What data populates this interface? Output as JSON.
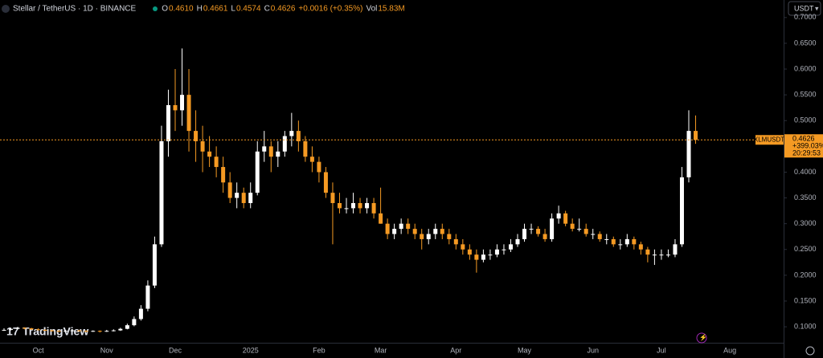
{
  "header": {
    "symbol": "Stellar / TetherUS · 1D · BINANCE",
    "ohlc": [
      {
        "label": "O",
        "value": "0.4610"
      },
      {
        "label": "H",
        "value": "0.4661"
      },
      {
        "label": "L",
        "value": "0.4574"
      },
      {
        "label": "C",
        "value": "0.4626"
      }
    ],
    "change": "+0.0016 (+0.35%)",
    "volume_label": "Vol",
    "volume": "15.83M"
  },
  "currency": "USDT",
  "watermark": "TradingView",
  "chart_data": {
    "type": "candlestick",
    "up_color": "#ffffff",
    "down_color": "#f59a23",
    "symbol": "XLMUSDT",
    "last_price": 0.4626,
    "last_change": "+399.03%",
    "countdown": "20:29:53",
    "ylim": [
      0.069,
      0.734
    ],
    "yticks": [
      {
        "value": 0.1,
        "label": "0.1000"
      },
      {
        "value": 0.15,
        "label": "0.1500"
      },
      {
        "value": 0.2,
        "label": "0.2000"
      },
      {
        "value": 0.25,
        "label": "0.2500"
      },
      {
        "value": 0.3,
        "label": "0.3000"
      },
      {
        "value": 0.35,
        "label": "0.3500"
      },
      {
        "value": 0.4,
        "label": "0.4000"
      },
      {
        "value": 0.45,
        "label": "0.4500"
      },
      {
        "value": 0.5,
        "label": "0.5000"
      },
      {
        "value": 0.55,
        "label": "0.5500"
      },
      {
        "value": 0.6,
        "label": "0.6000"
      },
      {
        "value": 0.65,
        "label": "0.6500"
      },
      {
        "value": 0.7,
        "label": "0.7000"
      }
    ],
    "categories": [
      null,
      null,
      null,
      null,
      null,
      "Oct",
      null,
      null,
      null,
      null,
      null,
      null,
      null,
      null,
      null,
      "Nov",
      null,
      null,
      null,
      null,
      null,
      null,
      null,
      null,
      null,
      "Dec",
      null,
      null,
      null,
      null,
      null,
      null,
      null,
      null,
      null,
      null,
      "2025",
      null,
      null,
      null,
      null,
      null,
      null,
      null,
      null,
      null,
      "Feb",
      null,
      null,
      null,
      null,
      null,
      null,
      null,
      null,
      "Mar",
      null,
      null,
      null,
      null,
      null,
      null,
      null,
      null,
      null,
      null,
      "Apr",
      null,
      null,
      null,
      null,
      null,
      null,
      null,
      null,
      null,
      "May",
      null,
      null,
      null,
      null,
      null,
      null,
      null,
      null,
      null,
      "Jun",
      null,
      null,
      null,
      null,
      null,
      null,
      null,
      null,
      null,
      "Jul",
      null,
      null,
      null,
      null,
      null,
      null,
      null,
      null,
      null,
      "Aug"
    ],
    "ohlc": [
      [
        0.093,
        0.097,
        0.092,
        0.094
      ],
      [
        0.094,
        0.098,
        0.093,
        0.096
      ],
      [
        0.096,
        0.1,
        0.095,
        0.098
      ],
      [
        0.098,
        0.099,
        0.095,
        0.097
      ],
      [
        0.097,
        0.098,
        0.094,
        0.095
      ],
      [
        0.095,
        0.097,
        0.093,
        0.094
      ],
      [
        0.094,
        0.095,
        0.092,
        0.093
      ],
      [
        0.093,
        0.094,
        0.091,
        0.092
      ],
      [
        0.092,
        0.093,
        0.09,
        0.091
      ],
      [
        0.091,
        0.094,
        0.09,
        0.092
      ],
      [
        0.092,
        0.095,
        0.091,
        0.093
      ],
      [
        0.093,
        0.094,
        0.091,
        0.092
      ],
      [
        0.092,
        0.093,
        0.09,
        0.091
      ],
      [
        0.091,
        0.093,
        0.09,
        0.092
      ],
      [
        0.092,
        0.093,
        0.089,
        0.091
      ],
      [
        0.091,
        0.094,
        0.09,
        0.092
      ],
      [
        0.092,
        0.095,
        0.091,
        0.093
      ],
      [
        0.093,
        0.098,
        0.092,
        0.096
      ],
      [
        0.096,
        0.106,
        0.095,
        0.103
      ],
      [
        0.103,
        0.12,
        0.101,
        0.115
      ],
      [
        0.115,
        0.142,
        0.112,
        0.135
      ],
      [
        0.135,
        0.19,
        0.13,
        0.18
      ],
      [
        0.18,
        0.275,
        0.175,
        0.26
      ],
      [
        0.26,
        0.49,
        0.255,
        0.46
      ],
      [
        0.46,
        0.56,
        0.43,
        0.53
      ],
      [
        0.53,
        0.6,
        0.48,
        0.52
      ],
      [
        0.52,
        0.64,
        0.49,
        0.55
      ],
      [
        0.55,
        0.6,
        0.44,
        0.48
      ],
      [
        0.48,
        0.52,
        0.42,
        0.46
      ],
      [
        0.46,
        0.49,
        0.4,
        0.44
      ],
      [
        0.44,
        0.47,
        0.41,
        0.43
      ],
      [
        0.43,
        0.45,
        0.39,
        0.41
      ],
      [
        0.41,
        0.43,
        0.36,
        0.38
      ],
      [
        0.38,
        0.4,
        0.34,
        0.35
      ],
      [
        0.35,
        0.38,
        0.33,
        0.36
      ],
      [
        0.36,
        0.37,
        0.33,
        0.34
      ],
      [
        0.34,
        0.38,
        0.33,
        0.36
      ],
      [
        0.36,
        0.46,
        0.355,
        0.44
      ],
      [
        0.44,
        0.48,
        0.42,
        0.45
      ],
      [
        0.45,
        0.46,
        0.4,
        0.43
      ],
      [
        0.43,
        0.46,
        0.41,
        0.44
      ],
      [
        0.44,
        0.48,
        0.43,
        0.47
      ],
      [
        0.47,
        0.515,
        0.45,
        0.48
      ],
      [
        0.48,
        0.5,
        0.44,
        0.46
      ],
      [
        0.46,
        0.47,
        0.42,
        0.43
      ],
      [
        0.43,
        0.45,
        0.4,
        0.42
      ],
      [
        0.42,
        0.43,
        0.38,
        0.4
      ],
      [
        0.4,
        0.41,
        0.35,
        0.36
      ],
      [
        0.36,
        0.38,
        0.26,
        0.34
      ],
      [
        0.34,
        0.36,
        0.32,
        0.33
      ],
      [
        0.33,
        0.35,
        0.32,
        0.33
      ],
      [
        0.33,
        0.36,
        0.32,
        0.34
      ],
      [
        0.34,
        0.35,
        0.32,
        0.33
      ],
      [
        0.33,
        0.35,
        0.32,
        0.34
      ],
      [
        0.34,
        0.35,
        0.31,
        0.32
      ],
      [
        0.32,
        0.37,
        0.3,
        0.3
      ],
      [
        0.3,
        0.31,
        0.27,
        0.28
      ],
      [
        0.28,
        0.3,
        0.27,
        0.29
      ],
      [
        0.29,
        0.31,
        0.28,
        0.3
      ],
      [
        0.3,
        0.31,
        0.28,
        0.29
      ],
      [
        0.29,
        0.3,
        0.27,
        0.28
      ],
      [
        0.28,
        0.29,
        0.25,
        0.27
      ],
      [
        0.27,
        0.29,
        0.26,
        0.28
      ],
      [
        0.28,
        0.3,
        0.27,
        0.29
      ],
      [
        0.29,
        0.3,
        0.27,
        0.28
      ],
      [
        0.28,
        0.29,
        0.26,
        0.27
      ],
      [
        0.27,
        0.28,
        0.25,
        0.26
      ],
      [
        0.26,
        0.27,
        0.24,
        0.25
      ],
      [
        0.25,
        0.26,
        0.23,
        0.24
      ],
      [
        0.24,
        0.25,
        0.205,
        0.23
      ],
      [
        0.23,
        0.25,
        0.225,
        0.24
      ],
      [
        0.24,
        0.25,
        0.23,
        0.24
      ],
      [
        0.24,
        0.26,
        0.235,
        0.25
      ],
      [
        0.25,
        0.26,
        0.24,
        0.25
      ],
      [
        0.25,
        0.27,
        0.245,
        0.26
      ],
      [
        0.26,
        0.28,
        0.255,
        0.27
      ],
      [
        0.27,
        0.3,
        0.265,
        0.29
      ],
      [
        0.29,
        0.3,
        0.28,
        0.29
      ],
      [
        0.29,
        0.295,
        0.275,
        0.28
      ],
      [
        0.28,
        0.29,
        0.265,
        0.27
      ],
      [
        0.27,
        0.32,
        0.265,
        0.31
      ],
      [
        0.31,
        0.335,
        0.3,
        0.32
      ],
      [
        0.32,
        0.325,
        0.295,
        0.3
      ],
      [
        0.3,
        0.31,
        0.285,
        0.29
      ],
      [
        0.29,
        0.31,
        0.285,
        0.29
      ],
      [
        0.29,
        0.3,
        0.275,
        0.28
      ],
      [
        0.28,
        0.29,
        0.27,
        0.28
      ],
      [
        0.28,
        0.285,
        0.265,
        0.27
      ],
      [
        0.27,
        0.28,
        0.26,
        0.27
      ],
      [
        0.27,
        0.275,
        0.255,
        0.26
      ],
      [
        0.26,
        0.27,
        0.25,
        0.26
      ],
      [
        0.26,
        0.28,
        0.255,
        0.27
      ],
      [
        0.27,
        0.275,
        0.25,
        0.26
      ],
      [
        0.26,
        0.265,
        0.24,
        0.25
      ],
      [
        0.25,
        0.255,
        0.225,
        0.24
      ],
      [
        0.24,
        0.25,
        0.22,
        0.24
      ],
      [
        0.24,
        0.25,
        0.23,
        0.24
      ],
      [
        0.24,
        0.25,
        0.235,
        0.24
      ],
      [
        0.24,
        0.27,
        0.235,
        0.26
      ],
      [
        0.26,
        0.41,
        0.255,
        0.39
      ],
      [
        0.39,
        0.52,
        0.38,
        0.48
      ],
      [
        0.48,
        0.51,
        0.455,
        0.4626
      ],
      null,
      null,
      null,
      null,
      null
    ]
  }
}
